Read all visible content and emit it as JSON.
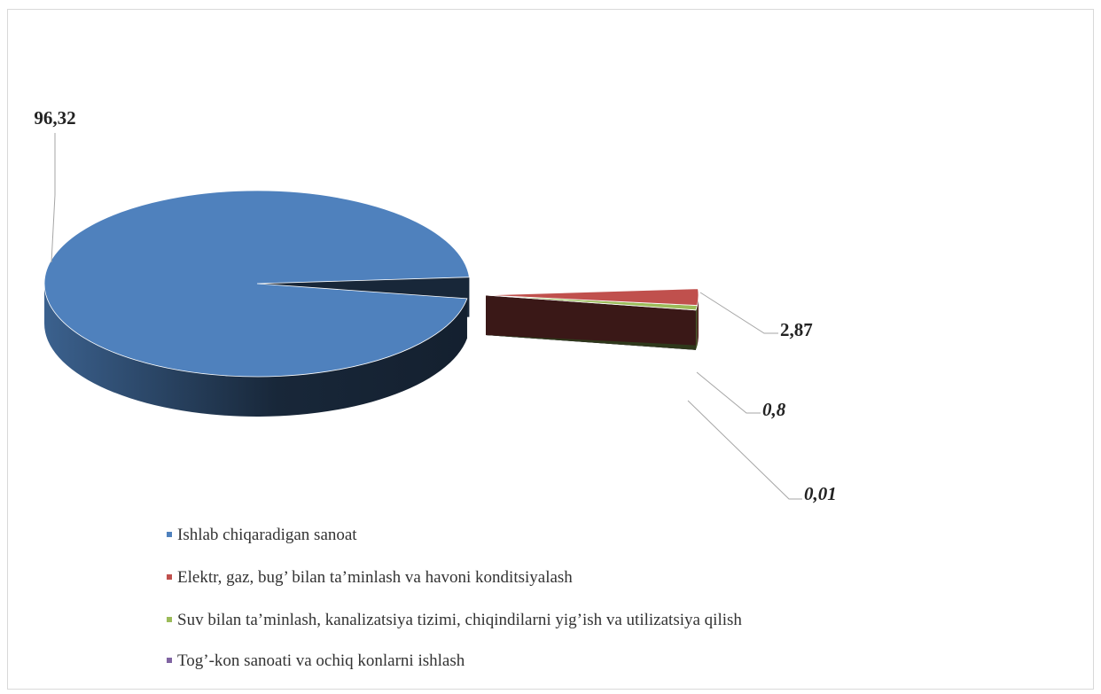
{
  "chart_data": {
    "type": "pie3d",
    "categories": [
      "Ishlab chiqaradigan sanoat",
      "Elektr, gaz, bug’ bilan ta’minlash va havoni konditsiyalash",
      "Suv bilan ta’minlash, kanalizatsiya tizimi, chiqindilarni yig’ish va utilizatsiya qilish",
      "Tog’-kon sanoati va ochiq konlarni ishlash"
    ],
    "values": [
      96.32,
      2.87,
      0.8,
      0.01
    ],
    "value_labels": [
      "96,32",
      "2,87",
      "0,8",
      "0,01"
    ],
    "colors": [
      "#4f81bd",
      "#c0504d",
      "#9bbb59",
      "#8064a2"
    ],
    "legend": "bottom"
  }
}
